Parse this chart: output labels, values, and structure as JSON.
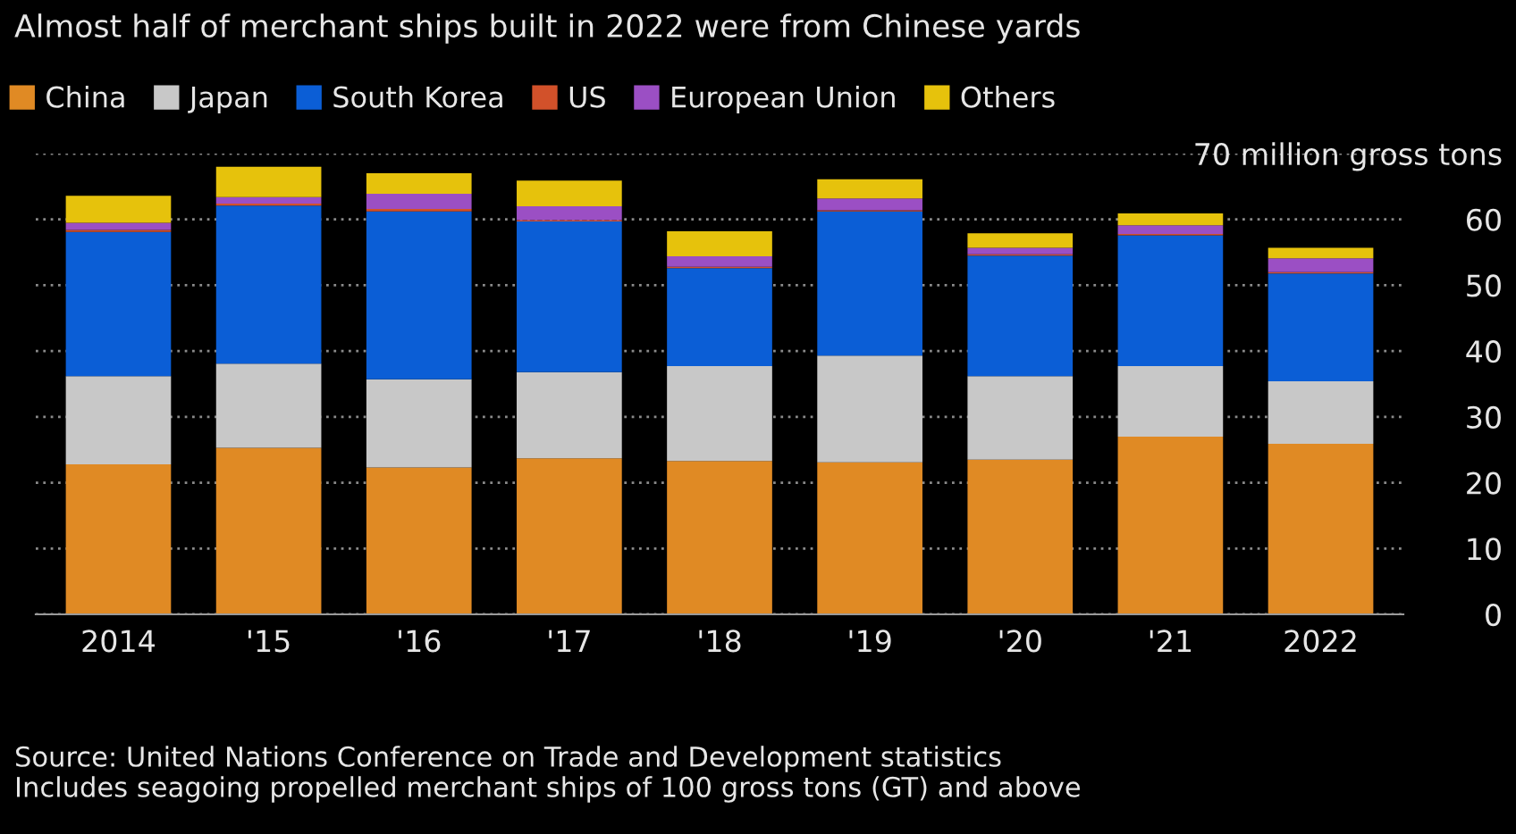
{
  "chart_data": {
    "type": "bar",
    "stacked": true,
    "title": "Almost half of merchant ships built in 2022 were from Chinese yards",
    "categories": [
      "2014",
      "'15",
      "'16",
      "'17",
      "'18",
      "'19",
      "'20",
      "'21",
      "2022"
    ],
    "series": [
      {
        "name": "China",
        "color": "#e08a24",
        "values": [
          22.8,
          25.3,
          22.3,
          23.7,
          23.3,
          23.1,
          23.5,
          27.0,
          25.9
        ]
      },
      {
        "name": "Japan",
        "color": "#c8c8c8",
        "values": [
          13.4,
          12.8,
          13.4,
          13.1,
          14.4,
          16.2,
          12.7,
          10.7,
          9.5
        ]
      },
      {
        "name": "South Korea",
        "color": "#0b5ed6",
        "values": [
          21.9,
          24.0,
          25.5,
          22.9,
          14.9,
          21.9,
          18.3,
          19.9,
          16.4
        ]
      },
      {
        "name": "US",
        "color": "#d2512a",
        "values": [
          0.3,
          0.3,
          0.4,
          0.2,
          0.2,
          0.2,
          0.2,
          0.2,
          0.2
        ]
      },
      {
        "name": "European Union",
        "color": "#9b4fc4",
        "values": [
          1.1,
          1.0,
          2.3,
          2.1,
          1.6,
          1.8,
          1.0,
          1.3,
          2.1
        ]
      },
      {
        "name": "Others",
        "color": "#e6c20c",
        "values": [
          4.1,
          4.6,
          3.1,
          3.9,
          3.8,
          2.9,
          2.2,
          1.8,
          1.6
        ]
      }
    ],
    "ylim": [
      0,
      70
    ],
    "yticks": [
      0,
      10,
      20,
      30,
      40,
      50,
      60,
      {
        "value": 70,
        "label": "70 million gross tons"
      }
    ],
    "grid": "y",
    "legend": "top left",
    "annotations": [
      "Source: United Nations Conference on Trade and Development statistics",
      "Includes seagoing propelled merchant ships of 100 gross tons (GT) and above"
    ]
  }
}
